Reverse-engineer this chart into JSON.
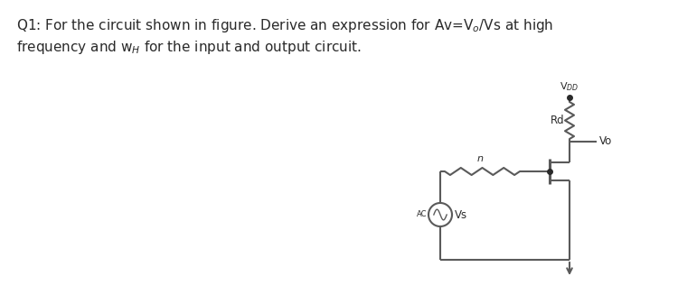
{
  "bg_color": "#ffffff",
  "circuit_color": "#5a5a5a",
  "text_color": "#2a2a2a",
  "fig_width": 7.5,
  "fig_height": 3.37,
  "dpi": 100,
  "title_text": "Q1: For the circuit shown in figure. Derive an expression for Av=V$_o$/Vs at high\nfrequency and w$_H$ for the input and output circuit.",
  "vdd_label": "V$_{DD}$",
  "rd_label": "Rd",
  "vo_label": "Vo",
  "vs_label": "Vs",
  "ac_label": "AC",
  "n_label": "n"
}
